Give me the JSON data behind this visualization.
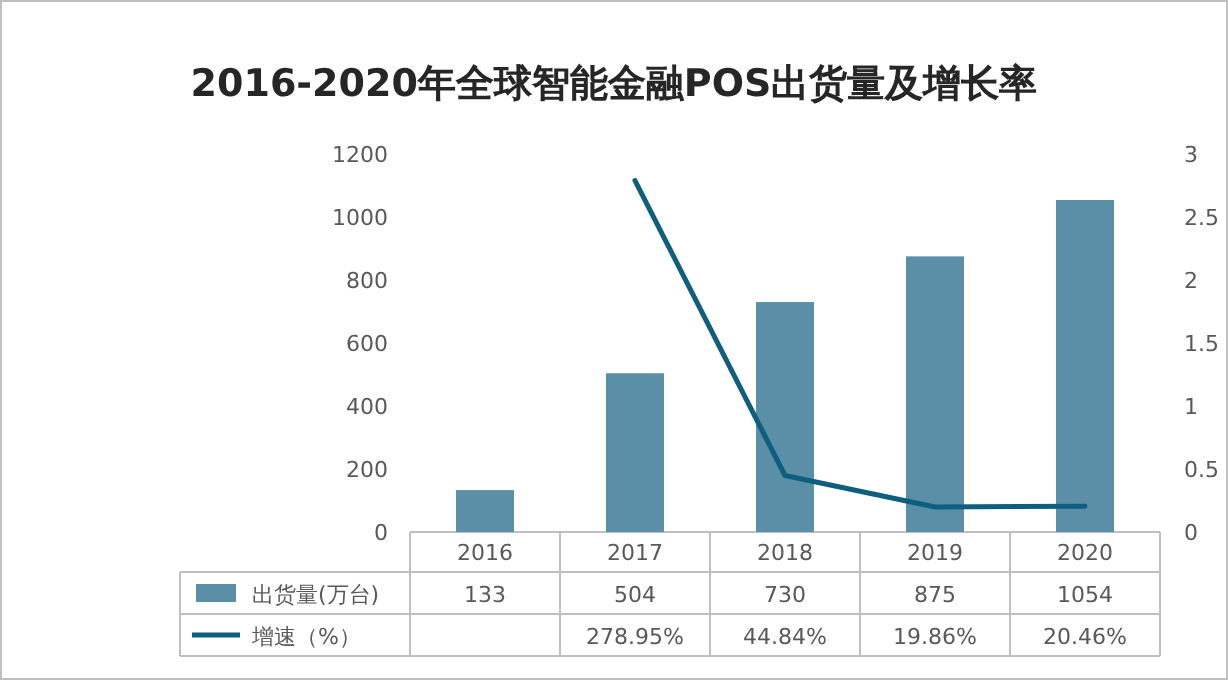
{
  "chart_data": {
    "type": "bar",
    "title": "2016-2020年全球智能金融POS出货量及增长率",
    "categories": [
      "2016",
      "2017",
      "2018",
      "2019",
      "2020"
    ],
    "series": [
      {
        "name": "出货量(万台)",
        "color": "#5b8fa7",
        "values": [
          133,
          504,
          730,
          875,
          1054
        ],
        "value_labels": [
          "133",
          "504",
          "730",
          "875",
          "1054"
        ]
      },
      {
        "name": "增速（%）",
        "type": "line",
        "axis": "y2",
        "color": "#0e5f7f",
        "values": [
          null,
          2.7895,
          0.4484,
          0.1986,
          0.2046
        ],
        "value_labels": [
          null,
          "278.95%",
          "44.84%",
          "19.86%",
          "20.46%"
        ]
      }
    ],
    "ylim": [
      0,
      1200
    ],
    "yticks": [
      0,
      200,
      400,
      600,
      800,
      1000,
      1200
    ],
    "y2lim": [
      0,
      3
    ],
    "y2ticks": [
      0,
      0.5,
      1,
      1.5,
      2,
      2.5,
      3
    ],
    "legend": "bottom"
  }
}
